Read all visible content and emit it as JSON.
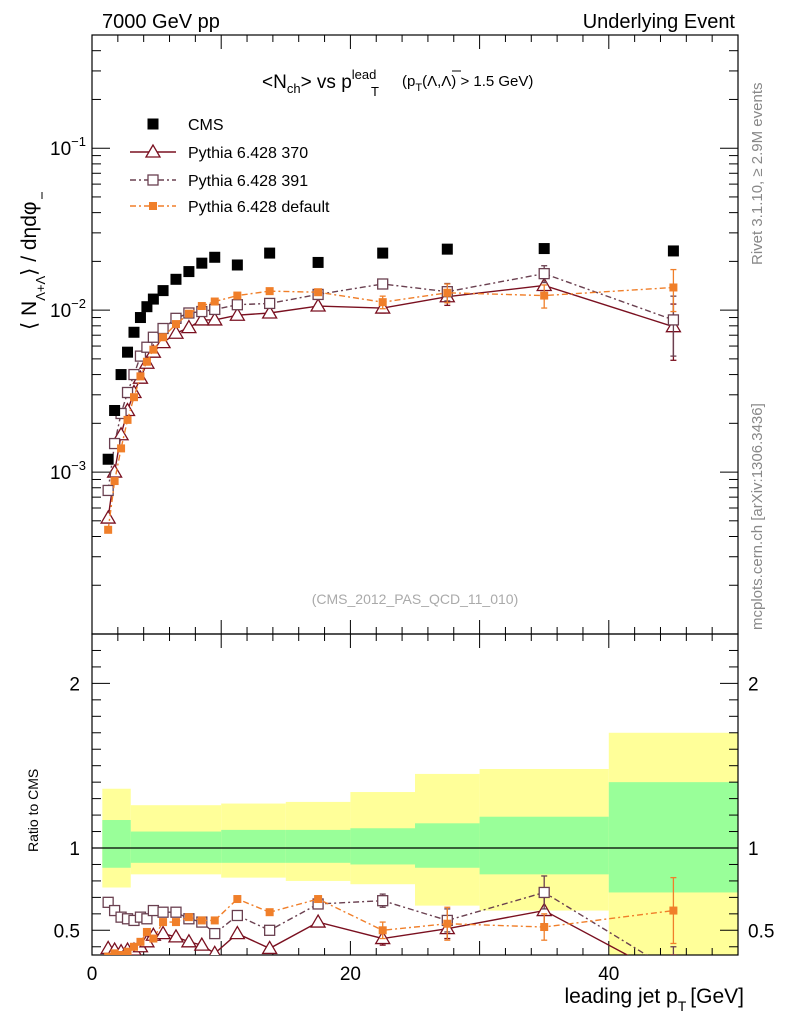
{
  "header": {
    "left": "7000 GeV pp",
    "right": "Underlying Event",
    "side_top": "Rivet 3.1.10, ≥ 2.9M events",
    "side_bottom": "mcplots.cern.ch [arXiv:1306.3436]"
  },
  "chart_data": {
    "type": "scatter",
    "title": {
      "main": "<N",
      "main_sub": "ch",
      "mid": "> vs p",
      "sup": "lead",
      "sub": "T",
      "cut": "(p",
      "cut_sub": "T",
      "cut_rest": "(Λ,Λ) > 1.5 GeV)"
    },
    "analysis": "(CMS_2012_PAS_QCD_11_010)",
    "xlabel": "leading jet p",
    "xlabel_sub": "T",
    "xlabel_unit": "[GeV]",
    "ylabel": {
      "pre": "⟨ N",
      "sub": "Λ+Λ",
      "post": "⟩ / dηdφ"
    },
    "ratio_ylabel": "Ratio to CMS",
    "xlim": [
      0,
      50
    ],
    "ylim_main": [
      0.0001,
      0.5
    ],
    "yscale_main": "log",
    "ylim_ratio": [
      0.35,
      2.3
    ],
    "x_ticks": [
      "0",
      "20",
      "40"
    ],
    "y_ticks_main": [
      {
        "base": "10",
        "exp": "−1"
      },
      {
        "base": "10",
        "exp": "−2"
      },
      {
        "base": "10",
        "exp": "−3"
      }
    ],
    "y_ticks_ratio": [
      "0.5",
      "1",
      "2"
    ],
    "legend_placement": "top-left",
    "series": [
      {
        "name": "CMS",
        "color": "#000000",
        "marker": "filled-square",
        "line": "none",
        "x": [
          1.25,
          1.75,
          2.25,
          2.75,
          3.25,
          3.75,
          4.25,
          4.75,
          5.5,
          6.5,
          7.5,
          8.5,
          9.5,
          11.25,
          13.75,
          17.5,
          22.5,
          27.5,
          35,
          45
        ],
        "y": [
          0.0012,
          0.0024,
          0.004,
          0.0055,
          0.0073,
          0.009,
          0.0105,
          0.0117,
          0.0132,
          0.0155,
          0.0173,
          0.0195,
          0.0212,
          0.019,
          0.0225,
          0.0197,
          0.0225,
          0.0238,
          0.024,
          0.0232
        ]
      },
      {
        "name": "Pythia 6.428 370",
        "color": "#7a1020",
        "marker": "open-triangle",
        "line": "solid",
        "x": [
          1.25,
          1.75,
          2.25,
          2.75,
          3.25,
          3.75,
          4.25,
          4.75,
          5.5,
          6.5,
          7.5,
          8.5,
          9.5,
          11.25,
          13.75,
          17.5,
          22.5,
          27.5,
          35,
          45
        ],
        "y": [
          0.00052,
          0.001,
          0.0017,
          0.0024,
          0.0031,
          0.0038,
          0.0047,
          0.0055,
          0.0063,
          0.0072,
          0.0078,
          0.0087,
          0.0087,
          0.0093,
          0.0096,
          0.0106,
          0.0103,
          0.0121,
          0.0142,
          0.0079
        ],
        "yerr": [
          0,
          0,
          0,
          0,
          0,
          0,
          0,
          0,
          0,
          0,
          0,
          0,
          0,
          0,
          0,
          0,
          0.0007,
          0.0014,
          0.0018,
          0.003
        ]
      },
      {
        "name": "Pythia 6.428 391",
        "color": "#6a4050",
        "marker": "open-square",
        "line": "dashdot",
        "x": [
          1.25,
          1.75,
          2.25,
          2.75,
          3.25,
          3.75,
          4.25,
          4.75,
          5.5,
          6.5,
          7.5,
          8.5,
          9.5,
          11.25,
          13.75,
          17.5,
          22.5,
          27.5,
          35,
          45
        ],
        "y": [
          0.00077,
          0.0015,
          0.0023,
          0.0031,
          0.004,
          0.0052,
          0.0059,
          0.0068,
          0.0077,
          0.0089,
          0.0096,
          0.0098,
          0.0101,
          0.0108,
          0.011,
          0.0125,
          0.0145,
          0.013,
          0.0168,
          0.0087
        ],
        "yerr": [
          0,
          0,
          0,
          0,
          0,
          0,
          0,
          0,
          0,
          0,
          0,
          0,
          0,
          0,
          0,
          0,
          0.0008,
          0.0016,
          0.002,
          0.0035
        ]
      },
      {
        "name": "Pythia 6.428 default",
        "color": "#f07f2a",
        "marker": "filled-small-square",
        "line": "dashdot",
        "x": [
          1.25,
          1.75,
          2.25,
          2.75,
          3.25,
          3.75,
          4.25,
          4.75,
          5.5,
          6.5,
          7.5,
          8.5,
          9.5,
          11.25,
          13.75,
          17.5,
          22.5,
          27.5,
          35,
          45
        ],
        "y": [
          0.00044,
          0.00088,
          0.0014,
          0.0021,
          0.0029,
          0.0039,
          0.0048,
          0.0057,
          0.0068,
          0.0082,
          0.0095,
          0.0106,
          0.0113,
          0.0123,
          0.0131,
          0.0129,
          0.0112,
          0.0128,
          0.0123,
          0.0138
        ],
        "yerr": [
          0,
          0,
          0,
          0,
          0,
          0,
          0,
          0,
          0,
          0,
          0,
          0,
          0,
          0,
          0,
          0,
          0.001,
          0.0017,
          0.002,
          0.004
        ]
      }
    ],
    "ratio": {
      "bands": [
        {
          "x0": 0.8,
          "x1": 3,
          "inner": [
            0.88,
            1.17
          ],
          "outer": [
            0.76,
            1.36
          ]
        },
        {
          "x0": 3,
          "x1": 10,
          "inner": [
            0.91,
            1.1
          ],
          "outer": [
            0.84,
            1.26
          ]
        },
        {
          "x0": 10,
          "x1": 15,
          "inner": [
            0.91,
            1.11
          ],
          "outer": [
            0.82,
            1.27
          ]
        },
        {
          "x0": 15,
          "x1": 20,
          "inner": [
            0.91,
            1.11
          ],
          "outer": [
            0.8,
            1.28
          ]
        },
        {
          "x0": 20,
          "x1": 25,
          "inner": [
            0.9,
            1.12
          ],
          "outer": [
            0.78,
            1.34
          ]
        },
        {
          "x0": 25,
          "x1": 30,
          "inner": [
            0.88,
            1.15
          ],
          "outer": [
            0.65,
            1.45
          ]
        },
        {
          "x0": 30,
          "x1": 40,
          "inner": [
            0.84,
            1.19
          ],
          "outer": [
            0.62,
            1.48
          ]
        },
        {
          "x0": 40,
          "x1": 50,
          "inner": [
            0.73,
            1.4
          ],
          "outer": [
            0.3,
            1.7
          ]
        }
      ],
      "series": [
        {
          "name": "Pythia 6.428 370",
          "y": [
            0.39,
            0.38,
            0.37,
            0.38,
            0.38,
            0.4,
            0.43,
            0.47,
            0.48,
            0.46,
            0.43,
            0.41,
            0.36,
            0.48,
            0.39,
            0.55,
            0.45,
            0.51,
            0.62,
            0.2
          ],
          "yerr": [
            0,
            0,
            0,
            0,
            0,
            0,
            0,
            0,
            0,
            0,
            0,
            0,
            0,
            0,
            0,
            0,
            0.04,
            0.06,
            0.08,
            0.15
          ]
        },
        {
          "name": "Pythia 6.428 391",
          "y": [
            0.67,
            0.62,
            0.58,
            0.57,
            0.56,
            0.58,
            0.57,
            0.62,
            0.61,
            0.61,
            0.57,
            0.55,
            0.48,
            0.59,
            0.5,
            0.66,
            0.68,
            0.56,
            0.73,
            0.25
          ],
          "yerr": [
            0,
            0,
            0,
            0,
            0,
            0,
            0,
            0,
            0,
            0,
            0,
            0,
            0,
            0,
            0,
            0,
            0.04,
            0.07,
            0.1,
            0.15
          ]
        },
        {
          "name": "Pythia 6.428 default",
          "y": [
            0.34,
            0.36,
            0.35,
            0.37,
            0.4,
            0.43,
            0.49,
            0.45,
            0.55,
            0.55,
            0.58,
            0.56,
            0.56,
            0.69,
            0.61,
            0.69,
            0.5,
            0.54,
            0.52,
            0.62
          ],
          "yerr": [
            0,
            0,
            0,
            0,
            0,
            0,
            0,
            0,
            0,
            0,
            0,
            0,
            0,
            0,
            0,
            0,
            0.05,
            0.1,
            0.08,
            0.2
          ]
        }
      ]
    }
  }
}
